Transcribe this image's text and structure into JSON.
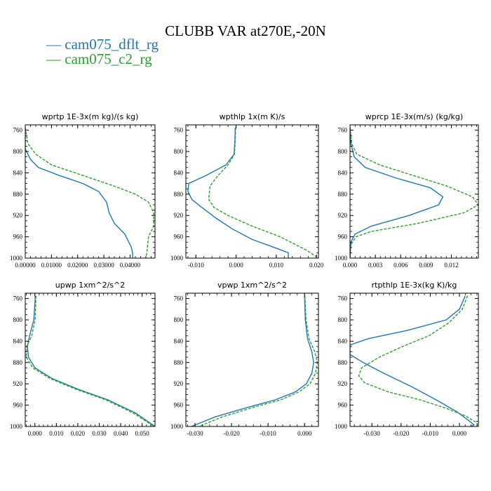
{
  "title": "CLUBB VAR at270E,-20N",
  "legend": [
    {
      "label": "— cam075_dflt_rg",
      "color": "#1f77b4"
    },
    {
      "label": "— cam075_c2_rg",
      "color": "#2ca02c"
    }
  ],
  "colors": {
    "dflt": "#1f77b4",
    "c2": "#2ca02c"
  },
  "chart_data": [
    {
      "type": "line",
      "title": "wprtp   1E-3x(m kg)/(s kg)",
      "xlim": [
        0,
        0.0495
      ],
      "ylim": [
        1000,
        750
      ],
      "xticks": [
        0,
        0.01,
        0.02,
        0.03,
        0.04
      ],
      "xtick_labels": [
        "0.00000",
        "0.01000",
        "0.02000",
        "0.03000",
        "0.04000"
      ],
      "yticks": [
        760,
        800,
        840,
        880,
        920,
        960,
        1000
      ],
      "series": [
        {
          "name": "cam075_dflt_rg",
          "x": [
            0.0,
            0.0,
            0.002,
            0.005,
            0.013,
            0.022,
            0.028,
            0.031,
            0.032,
            0.034,
            0.038,
            0.0405,
            0.041,
            0.041
          ],
          "y": [
            755,
            795,
            815,
            830,
            845,
            860,
            875,
            895,
            915,
            935,
            955,
            980,
            993,
            1000
          ]
        },
        {
          "name": "cam075_c2_rg",
          "x": [
            0.0,
            0.001,
            0.004,
            0.01,
            0.022,
            0.034,
            0.042,
            0.047,
            0.049,
            0.049,
            0.047,
            0.0465,
            0.046
          ],
          "y": [
            755,
            785,
            805,
            825,
            845,
            865,
            880,
            895,
            915,
            940,
            960,
            985,
            1000
          ]
        }
      ]
    },
    {
      "type": "line",
      "title": "wpthlp   1x(m K)/s",
      "xlim": [
        -0.0125,
        0.0205
      ],
      "ylim": [
        1000,
        750
      ],
      "xticks": [
        -0.01,
        0,
        0.01,
        0.02
      ],
      "xtick_labels": [
        "-0.010",
        "0.000",
        "0.010",
        "0.020"
      ],
      "yticks": [
        760,
        800,
        840,
        880,
        920,
        960,
        1000
      ],
      "series": [
        {
          "name": "cam075_dflt_rg",
          "x": [
            -0.0002,
            -0.0003,
            -0.0005,
            -0.0025,
            -0.0075,
            -0.0118,
            -0.012,
            -0.011,
            -0.0085,
            -0.005,
            -0.001,
            0.004,
            0.0095,
            0.013,
            0.013
          ],
          "y": [
            755,
            780,
            805,
            825,
            845,
            860,
            875,
            890,
            905,
            925,
            945,
            965,
            980,
            990,
            1000
          ]
        },
        {
          "name": "cam075_c2_rg",
          "x": [
            -0.0001,
            -0.0002,
            -0.0004,
            -0.002,
            -0.0045,
            -0.0065,
            -0.0068,
            -0.0055,
            -0.002,
            0.004,
            0.011,
            0.0175,
            0.0205
          ],
          "y": [
            755,
            780,
            805,
            825,
            845,
            865,
            890,
            905,
            920,
            940,
            960,
            985,
            1000
          ]
        }
      ]
    },
    {
      "type": "line",
      "title": "wprcp   1E-3x(m/s) (kg/kg)",
      "xlim": [
        0,
        0.0152
      ],
      "ylim": [
        1000,
        750
      ],
      "xticks": [
        0,
        0.003,
        0.006,
        0.009,
        0.012
      ],
      "xtick_labels": [
        "0.000",
        "0.003",
        "0.006",
        "0.009",
        "0.012"
      ],
      "yticks": [
        760,
        800,
        840,
        880,
        920,
        960,
        1000
      ],
      "series": [
        {
          "name": "cam075_dflt_rg",
          "x": [
            0.0,
            0.0001,
            0.0005,
            0.0018,
            0.0055,
            0.0095,
            0.011,
            0.0105,
            0.007,
            0.0025,
            0.0006,
            0.0001,
            0.0
          ],
          "y": [
            755,
            785,
            810,
            830,
            850,
            868,
            885,
            900,
            920,
            940,
            955,
            970,
            1000
          ]
        },
        {
          "name": "cam075_c2_rg",
          "x": [
            0.0,
            0.0002,
            0.0008,
            0.0035,
            0.0075,
            0.0115,
            0.0145,
            0.0152,
            0.0135,
            0.008,
            0.0025,
            0.0007,
            0.0001,
            0.0
          ],
          "y": [
            755,
            785,
            805,
            825,
            845,
            865,
            885,
            900,
            915,
            935,
            950,
            960,
            975,
            1000
          ]
        }
      ]
    },
    {
      "type": "line",
      "title": "upwp   1xm^2/s^2",
      "xlim": [
        -0.0045,
        0.056
      ],
      "ylim": [
        1000,
        750
      ],
      "xticks": [
        0,
        0.01,
        0.02,
        0.03,
        0.04,
        0.05
      ],
      "xtick_labels": [
        "0.000",
        "0.010",
        "0.020",
        "0.030",
        "0.040",
        "0.050"
      ],
      "yticks": [
        760,
        800,
        840,
        880,
        920,
        960,
        1000
      ],
      "series": [
        {
          "name": "cam075_dflt_rg",
          "x": [
            0.0002,
            -0.0005,
            -0.0025,
            -0.0035,
            -0.003,
            0.0,
            0.008,
            0.02,
            0.034,
            0.047,
            0.056
          ],
          "y": [
            755,
            800,
            830,
            850,
            870,
            890,
            910,
            930,
            950,
            975,
            1000
          ]
        },
        {
          "name": "cam075_c2_rg",
          "x": [
            0.0005,
            0.0001,
            -0.0015,
            -0.0038,
            -0.004,
            -0.001,
            0.007,
            0.019,
            0.033,
            0.046,
            0.0555
          ],
          "y": [
            755,
            800,
            830,
            850,
            870,
            890,
            910,
            930,
            950,
            975,
            1000
          ]
        }
      ]
    },
    {
      "type": "line",
      "title": "vpwp   1xm^2/s^2",
      "xlim": [
        -0.0325,
        0.0038
      ],
      "ylim": [
        1000,
        750
      ],
      "xticks": [
        -0.03,
        -0.02,
        -0.01,
        0
      ],
      "xtick_labels": [
        "-0.030",
        "-0.020",
        "-0.010",
        "0.000"
      ],
      "yticks": [
        760,
        800,
        840,
        880,
        920,
        960,
        1000
      ],
      "series": [
        {
          "name": "cam075_dflt_rg",
          "x": [
            0.0,
            0.0002,
            0.0008,
            0.002,
            0.0025,
            0.002,
            0.0005,
            -0.0025,
            -0.008,
            -0.016,
            -0.0245,
            -0.031
          ],
          "y": [
            755,
            800,
            835,
            860,
            880,
            900,
            920,
            935,
            950,
            965,
            982,
            1000
          ]
        },
        {
          "name": "cam075_c2_rg",
          "x": [
            0.0001,
            0.0004,
            0.0012,
            0.0028,
            0.0035,
            0.003,
            0.0015,
            -0.0015,
            -0.0065,
            -0.0145,
            -0.0225,
            -0.029
          ],
          "y": [
            755,
            800,
            835,
            860,
            880,
            900,
            920,
            935,
            950,
            965,
            982,
            1000
          ]
        }
      ]
    },
    {
      "type": "line",
      "title": "rtpthlp   1E-3x(kg K)/kg",
      "xlim": [
        -0.0375,
        0.0065
      ],
      "ylim": [
        1000,
        750
      ],
      "xticks": [
        -0.03,
        -0.02,
        -0.01,
        0
      ],
      "xtick_labels": [
        "-0.030",
        "-0.020",
        "-0.010",
        "0.000"
      ],
      "yticks": [
        760,
        800,
        840,
        880,
        920,
        960,
        1000
      ],
      "series": [
        {
          "name": "cam075_dflt_rg",
          "x": [
            0.002,
            0.0,
            -0.0045,
            -0.018,
            -0.031,
            -0.0375,
            -0.0375,
            -0.033,
            -0.026,
            -0.0165,
            -0.008,
            -0.001,
            0.003,
            0.005,
            0.004
          ],
          "y": [
            755,
            780,
            800,
            820,
            835,
            847,
            865,
            880,
            900,
            925,
            950,
            972,
            988,
            997,
            1000
          ]
        },
        {
          "name": "cam075_c2_rg",
          "x": [
            0.0028,
            0.001,
            -0.0035,
            -0.0105,
            -0.0195,
            -0.0275,
            -0.0335,
            -0.0345,
            -0.0325,
            -0.0245,
            -0.0135,
            -0.005,
            0.002,
            0.006,
            0.0062
          ],
          "y": [
            755,
            780,
            805,
            830,
            850,
            870,
            890,
            905,
            918,
            935,
            950,
            965,
            980,
            993,
            1000
          ]
        }
      ]
    }
  ]
}
